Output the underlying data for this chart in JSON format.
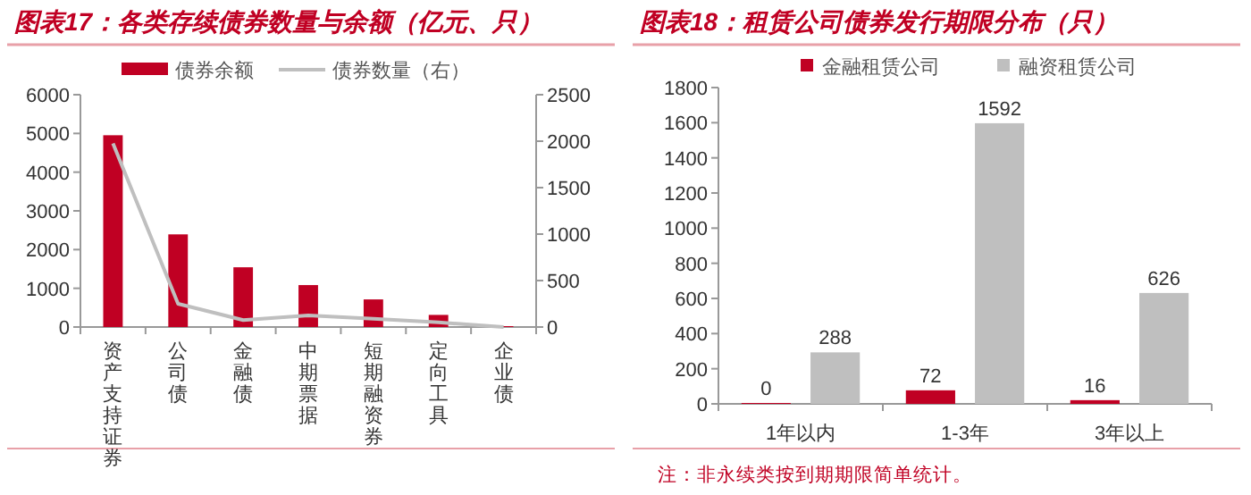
{
  "chart_data": [
    {
      "type": "bar",
      "title": "图表17：各类存续债券数量与余额（亿元、只）",
      "categories": [
        "资产支持证券",
        "公司债",
        "金融债",
        "中期票据",
        "短期融资券",
        "定向工具",
        "企业债"
      ],
      "series": [
        {
          "name": "债券余额",
          "type": "bar",
          "color": "#c00023",
          "values": [
            4930,
            2370,
            1520,
            1060,
            690,
            290,
            0
          ]
        },
        {
          "name": "债券数量（右）",
          "type": "line",
          "axis": "y2",
          "color": "#bfbfbf",
          "values": [
            1975,
            250,
            75,
            125,
            90,
            50,
            0
          ]
        }
      ],
      "ylim": [
        0,
        6000
      ],
      "yticks": [
        0,
        1000,
        2000,
        3000,
        4000,
        5000,
        6000
      ],
      "y2lim": [
        0,
        2500
      ],
      "y2ticks": [
        0,
        500,
        1000,
        1500,
        2000,
        2500
      ],
      "legend": "top",
      "grid": false
    },
    {
      "type": "bar",
      "title": "图表18：租赁公司债券发行期限分布（只）",
      "categories": [
        "1年以内",
        "1-3年",
        "3年以上"
      ],
      "series": [
        {
          "name": "金融租赁公司",
          "color": "#c00023",
          "values": [
            0,
            72,
            16
          ]
        },
        {
          "name": "融资租赁公司",
          "color": "#bfbfbf",
          "values": [
            288,
            1592,
            626
          ]
        }
      ],
      "ylim": [
        0,
        1800
      ],
      "yticks": [
        0,
        200,
        400,
        600,
        800,
        1000,
        1200,
        1400,
        1600,
        1800
      ],
      "legend": "top",
      "grid": false,
      "data_labels": true,
      "annotations": [
        "注：非永续类按到期期限简单统计。"
      ]
    }
  ]
}
